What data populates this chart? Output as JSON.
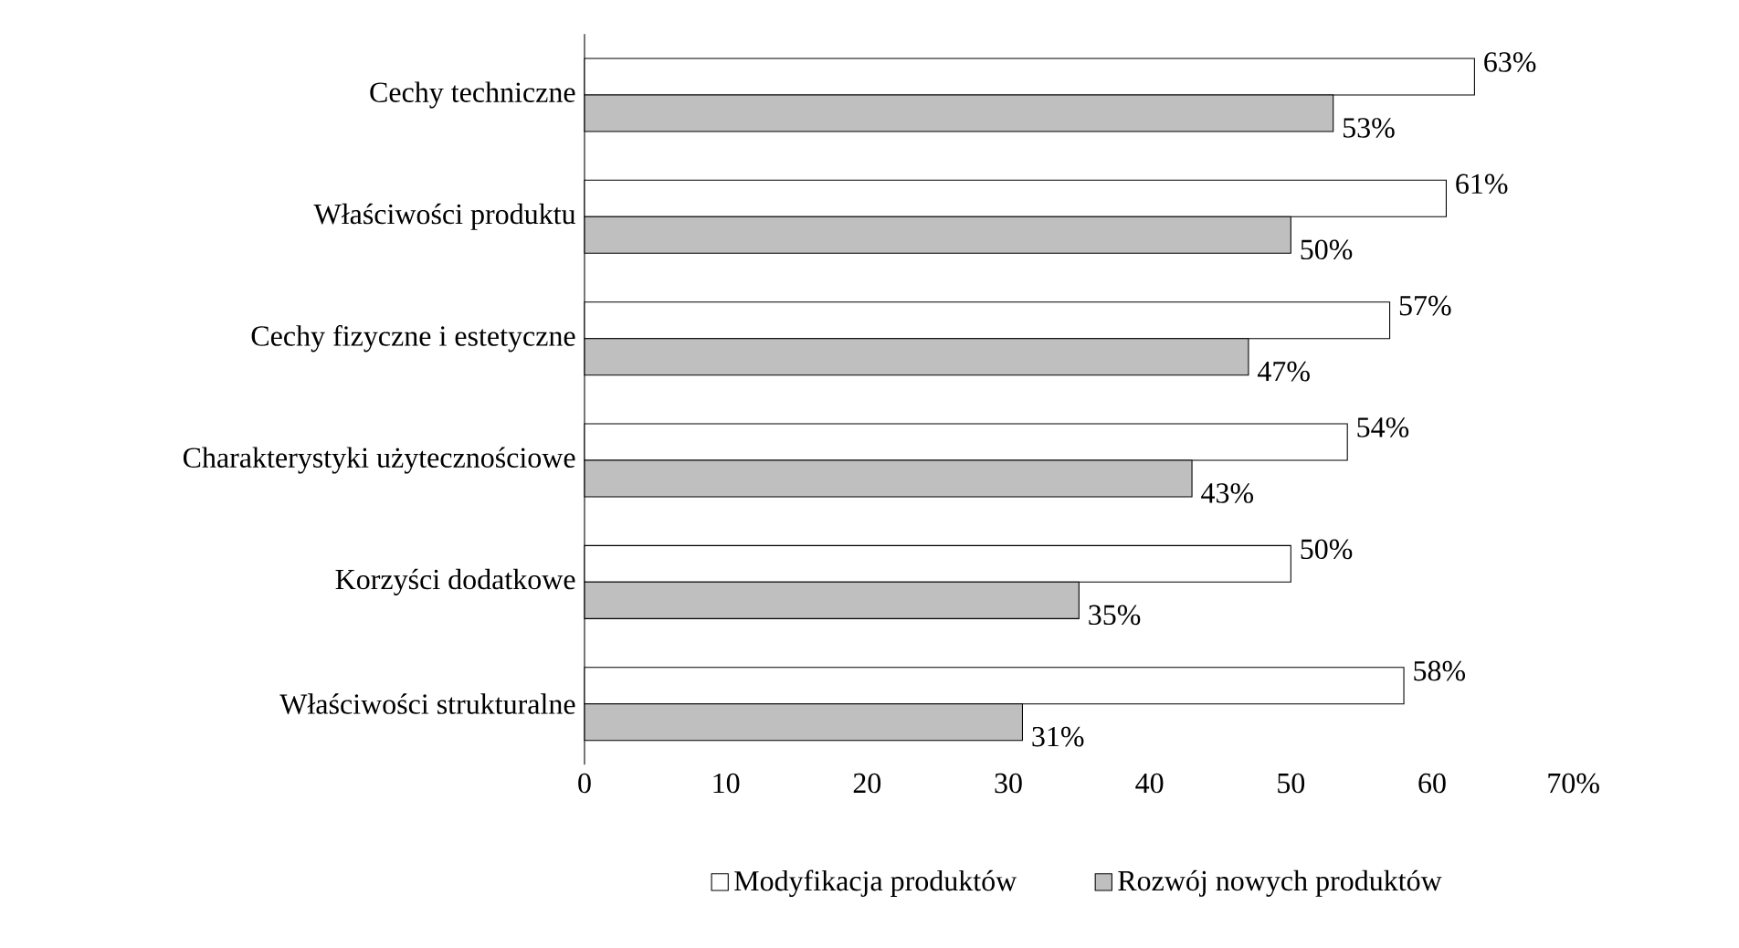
{
  "chart_data": {
    "type": "bar",
    "orientation": "horizontal",
    "categories": [
      "Cechy techniczne",
      "Właściwości produktu",
      "Cechy fizyczne i estetyczne",
      "Charakterystyki użytecznościowe",
      "Korzyści dodatkowe",
      "Właściwości strukturalne"
    ],
    "series": [
      {
        "name": "Modyfikacja produktów",
        "color": "#ffffff",
        "values": [
          63,
          61,
          57,
          54,
          50,
          58
        ],
        "value_labels": [
          "63%",
          "61%",
          "57%",
          "54%",
          "50%",
          "58%"
        ]
      },
      {
        "name": "Rozwój nowych produktów",
        "color": "#bfbfbf",
        "values": [
          53,
          50,
          47,
          43,
          35,
          31
        ],
        "value_labels": [
          "53%",
          "50%",
          "47%",
          "43%",
          "35%",
          "31%"
        ]
      }
    ],
    "xlim": [
      0,
      70
    ],
    "xticks": [
      0,
      10,
      20,
      30,
      40,
      50,
      60,
      {
        "value": 70,
        "label": "70%"
      }
    ],
    "legend": "bottom"
  }
}
